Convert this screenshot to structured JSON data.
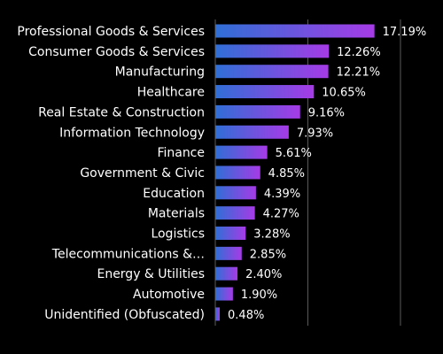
{
  "chart_data": {
    "type": "bar",
    "orientation": "horizontal",
    "categories": [
      "Professional Goods & Services",
      "Consumer Goods & Services",
      "Manufacturing",
      "Healthcare",
      "Real Estate & Construction",
      "Information Technology",
      "Finance",
      "Government & Civic",
      "Education",
      "Materials",
      "Logistics",
      "Telecommunications &…",
      "Energy & Utilities",
      "Automotive",
      "Unidentified (Obfuscated)"
    ],
    "values": [
      17.19,
      12.26,
      12.21,
      10.65,
      9.16,
      7.93,
      5.61,
      4.85,
      4.39,
      4.27,
      3.28,
      2.85,
      2.4,
      1.9,
      0.48
    ],
    "value_labels": [
      "17.19%",
      "12.26%",
      "12.21%",
      "10.65%",
      "9.16%",
      "7.93%",
      "5.61%",
      "4.85%",
      "4.39%",
      "4.27%",
      "3.28%",
      "2.85%",
      "2.40%",
      "1.90%",
      "0.48%"
    ],
    "xlim": [
      0,
      20
    ],
    "grid": true,
    "title": "",
    "xlabel": "",
    "ylabel": ""
  },
  "colors": {
    "background": "#000000",
    "bar_gradient_start": "#2f6fd6",
    "bar_gradient_end": "#a63be6",
    "text": "#ffffff",
    "grid": "#5a5a5a"
  }
}
